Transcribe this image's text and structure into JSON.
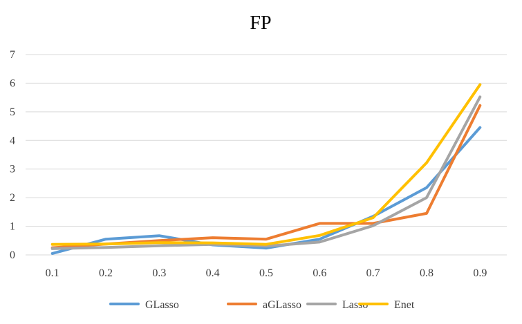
{
  "chart_data": {
    "type": "line",
    "title": "FP",
    "xlabel": "",
    "ylabel": "",
    "categories": [
      "0.1",
      "0.2",
      "0.3",
      "0.4",
      "0.5",
      "0.6",
      "0.7",
      "0.8",
      "0.9"
    ],
    "ylim": [
      0,
      7
    ],
    "yticks": [
      0,
      1,
      2,
      3,
      4,
      5,
      6,
      7
    ],
    "grid": true,
    "legend": "bottom",
    "series": [
      {
        "name": "GLasso",
        "color": "#5B9BD5",
        "values": [
          0.05,
          0.55,
          0.67,
          0.35,
          0.24,
          0.55,
          1.35,
          2.35,
          4.45
        ]
      },
      {
        "name": "aGLasso",
        "color": "#ED7D31",
        "values": [
          0.25,
          0.38,
          0.5,
          0.6,
          0.55,
          1.1,
          1.1,
          1.45,
          5.22
        ]
      },
      {
        "name": "Lasso",
        "color": "#A5A5A5",
        "values": [
          0.22,
          0.26,
          0.32,
          0.37,
          0.31,
          0.45,
          1.02,
          2.0,
          5.52
        ]
      },
      {
        "name": "Enet",
        "color": "#FFC000",
        "values": [
          0.37,
          0.38,
          0.43,
          0.42,
          0.37,
          0.68,
          1.3,
          3.22,
          5.95
        ]
      }
    ]
  }
}
